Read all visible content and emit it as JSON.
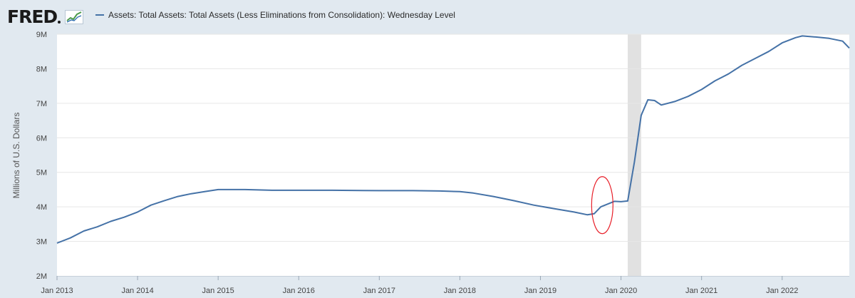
{
  "header": {
    "logo_text": "FRED"
  },
  "chart_data": {
    "type": "line",
    "title": "",
    "xlabel": "",
    "ylabel": "Millions of U.S. Dollars",
    "legend": [
      {
        "name": "Assets: Total Assets: Total Assets (Less Eliminations from Consolidation): Wednesday Level",
        "color": "#4572a7"
      }
    ],
    "ylim": [
      2000000,
      9000000
    ],
    "y_ticks": [
      {
        "value": 9000000,
        "label": "9M"
      },
      {
        "value": 8000000,
        "label": "8M"
      },
      {
        "value": 7000000,
        "label": "7M"
      },
      {
        "value": 6000000,
        "label": "6M"
      },
      {
        "value": 5000000,
        "label": "5M"
      },
      {
        "value": 4000000,
        "label": "4M"
      },
      {
        "value": 3000000,
        "label": "3M"
      },
      {
        "value": 2000000,
        "label": "2M"
      }
    ],
    "x_ticks": [
      {
        "value": "2013-01",
        "label": "Jan 2013"
      },
      {
        "value": "2014-01",
        "label": "Jan 2014"
      },
      {
        "value": "2015-01",
        "label": "Jan 2015"
      },
      {
        "value": "2016-01",
        "label": "Jan 2016"
      },
      {
        "value": "2017-01",
        "label": "Jan 2017"
      },
      {
        "value": "2018-01",
        "label": "Jan 2018"
      },
      {
        "value": "2019-01",
        "label": "Jan 2019"
      },
      {
        "value": "2020-01",
        "label": "Jan 2020"
      },
      {
        "value": "2021-01",
        "label": "Jan 2021"
      },
      {
        "value": "2022-01",
        "label": "Jan 2022"
      }
    ],
    "xlim": [
      "2013-01",
      "2022-11"
    ],
    "recession": {
      "start": "2020-02",
      "end": "2020-04",
      "color": "#e1e1e1"
    },
    "annotation": {
      "type": "ellipse",
      "center": "2019-10",
      "value": 4050000,
      "color": "#e8202a"
    },
    "grid": "horizontal",
    "series": [
      {
        "name": "Assets: Total Assets: Total Assets (Less Eliminations from Consolidation): Wednesday Level",
        "color": "#4572a7",
        "points": [
          [
            "2013-01",
            2950000
          ],
          [
            "2013-03",
            3100000
          ],
          [
            "2013-05",
            3300000
          ],
          [
            "2013-07",
            3420000
          ],
          [
            "2013-09",
            3580000
          ],
          [
            "2013-11",
            3700000
          ],
          [
            "2014-01",
            3850000
          ],
          [
            "2014-03",
            4050000
          ],
          [
            "2014-05",
            4180000
          ],
          [
            "2014-07",
            4300000
          ],
          [
            "2014-09",
            4380000
          ],
          [
            "2014-11",
            4440000
          ],
          [
            "2015-01",
            4500000
          ],
          [
            "2015-05",
            4500000
          ],
          [
            "2015-09",
            4480000
          ],
          [
            "2016-01",
            4480000
          ],
          [
            "2016-06",
            4480000
          ],
          [
            "2017-01",
            4470000
          ],
          [
            "2017-06",
            4470000
          ],
          [
            "2017-10",
            4460000
          ],
          [
            "2018-01",
            4440000
          ],
          [
            "2018-03",
            4400000
          ],
          [
            "2018-06",
            4300000
          ],
          [
            "2018-09",
            4180000
          ],
          [
            "2018-12",
            4050000
          ],
          [
            "2019-03",
            3950000
          ],
          [
            "2019-06",
            3850000
          ],
          [
            "2019-08",
            3770000
          ],
          [
            "2019-09",
            3800000
          ],
          [
            "2019-10",
            4000000
          ],
          [
            "2019-11",
            4080000
          ],
          [
            "2019-12",
            4160000
          ],
          [
            "2020-01",
            4150000
          ],
          [
            "2020-02",
            4170000
          ],
          [
            "2020-03",
            5300000
          ],
          [
            "2020-04",
            6650000
          ],
          [
            "2020-05",
            7100000
          ],
          [
            "2020-06",
            7080000
          ],
          [
            "2020-07",
            6950000
          ],
          [
            "2020-09",
            7050000
          ],
          [
            "2020-11",
            7200000
          ],
          [
            "2021-01",
            7400000
          ],
          [
            "2021-03",
            7650000
          ],
          [
            "2021-05",
            7850000
          ],
          [
            "2021-07",
            8100000
          ],
          [
            "2021-09",
            8300000
          ],
          [
            "2021-11",
            8500000
          ],
          [
            "2022-01",
            8750000
          ],
          [
            "2022-03",
            8900000
          ],
          [
            "2022-04",
            8950000
          ],
          [
            "2022-06",
            8920000
          ],
          [
            "2022-08",
            8880000
          ],
          [
            "2022-10",
            8800000
          ],
          [
            "2022-11",
            8600000
          ]
        ]
      }
    ]
  }
}
